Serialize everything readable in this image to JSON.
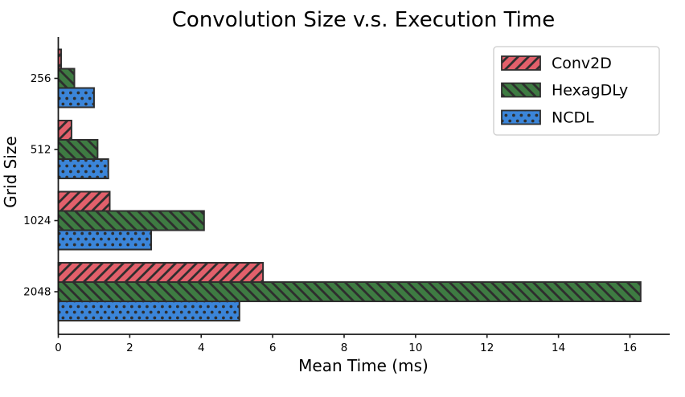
{
  "chart_data": {
    "type": "bar",
    "orientation": "horizontal",
    "title": "Convolution Size v.s. Execution Time",
    "xlabel": "Mean Time (ms)",
    "ylabel": "Grid Size",
    "categories": [
      "256",
      "512",
      "1024",
      "2048"
    ],
    "series": [
      {
        "name": "Conv2D",
        "color": "#e2606b",
        "hatch": "forward-diagonal",
        "values": [
          0.08,
          0.37,
          1.44,
          5.73
        ]
      },
      {
        "name": "HexagDLy",
        "color": "#3e7b42",
        "hatch": "back-diagonal",
        "values": [
          0.45,
          1.1,
          4.08,
          16.3
        ]
      },
      {
        "name": "NCDL",
        "color": "#3b85d9",
        "hatch": "dots",
        "values": [
          1.0,
          1.4,
          2.6,
          5.07
        ]
      }
    ],
    "xticks": [
      0,
      2,
      4,
      6,
      8,
      10,
      12,
      14,
      16
    ],
    "xlim": [
      0,
      17.1
    ],
    "grid": false,
    "legend": {
      "position": "upper-right",
      "entries": [
        "Conv2D",
        "HexagDLy",
        "NCDL"
      ]
    },
    "colors": {
      "bar_edge": "#2e2e2e",
      "hatch": "#2e2e2e",
      "axis": "#1a1a1a",
      "legend_border": "#cccccc",
      "legend_background": "#ffffff",
      "text": "#000000"
    }
  }
}
